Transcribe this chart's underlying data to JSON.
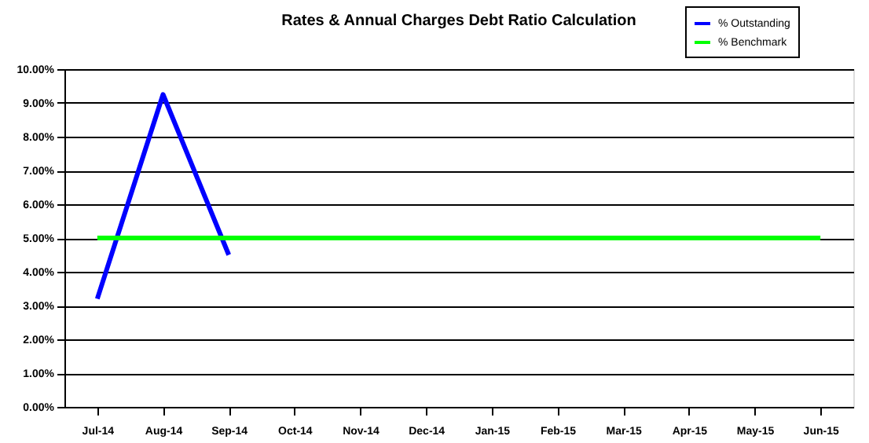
{
  "chart_data": {
    "type": "line",
    "title": "Rates & Annual Charges Debt Ratio Calculation",
    "categories": [
      "Jul-14",
      "Aug-14",
      "Sep-14",
      "Oct-14",
      "Nov-14",
      "Dec-14",
      "Jan-15",
      "Feb-15",
      "Mar-15",
      "Apr-15",
      "May-15",
      "Jun-15"
    ],
    "series": [
      {
        "name": "% Outstanding",
        "color": "#0000ff",
        "values": [
          3.2,
          9.25,
          4.5,
          null,
          null,
          null,
          null,
          null,
          null,
          null,
          null,
          null
        ]
      },
      {
        "name": "% Benchmark",
        "color": "#00ff00",
        "values": [
          5,
          5,
          5,
          5,
          5,
          5,
          5,
          5,
          5,
          5,
          5,
          5
        ]
      }
    ],
    "ylim": [
      0,
      10
    ],
    "yticks": [
      {
        "value": 0,
        "label": "0.00%"
      },
      {
        "value": 1,
        "label": "1.00%"
      },
      {
        "value": 2,
        "label": "2.00%"
      },
      {
        "value": 3,
        "label": "3.00%"
      },
      {
        "value": 4,
        "label": "4.00%"
      },
      {
        "value": 5,
        "label": "5.00%"
      },
      {
        "value": 6,
        "label": "6.00%"
      },
      {
        "value": 7,
        "label": "7.00%"
      },
      {
        "value": 8,
        "label": "8.00%"
      },
      {
        "value": 9,
        "label": "9.00%"
      },
      {
        "value": 10,
        "label": "10.00%"
      }
    ],
    "grid": "y",
    "legend": "top right",
    "marker": "none",
    "line_style": "solid"
  }
}
